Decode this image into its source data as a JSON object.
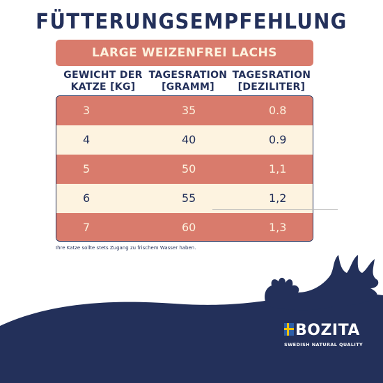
{
  "title": "FÜTTERUNGSEMPFEHLUNG",
  "product": "LARGE WEIZENFREI LACHS",
  "columns": [
    {
      "line1": "GEWICHT DER",
      "line2": "KATZE [KG]"
    },
    {
      "line1": "TAGESRATION",
      "line2": "[GRAMM]"
    },
    {
      "line1": "TAGESRATION",
      "line2": "[DEZILITER]"
    }
  ],
  "rows": [
    {
      "weight": "3",
      "gram": "35",
      "dl": "0.8"
    },
    {
      "weight": "4",
      "gram": "40",
      "dl": "0.9"
    },
    {
      "weight": "5",
      "gram": "50",
      "dl": "1,1"
    },
    {
      "weight": "6",
      "gram": "55",
      "dl": "1,2"
    },
    {
      "weight": "7",
      "gram": "60",
      "dl": "1,3"
    }
  ],
  "footnote": "Ihre Katze sollte stets Zugang zu frischem Wasser haben.",
  "brand": {
    "name": "BOZITA",
    "tagline": "SWEDISH NATURAL QUALITY",
    "icon": "swedish-flag-icon"
  },
  "colors": {
    "navy": "#23305a",
    "salmon": "#d97b6c",
    "cream": "#fdf3e0"
  }
}
